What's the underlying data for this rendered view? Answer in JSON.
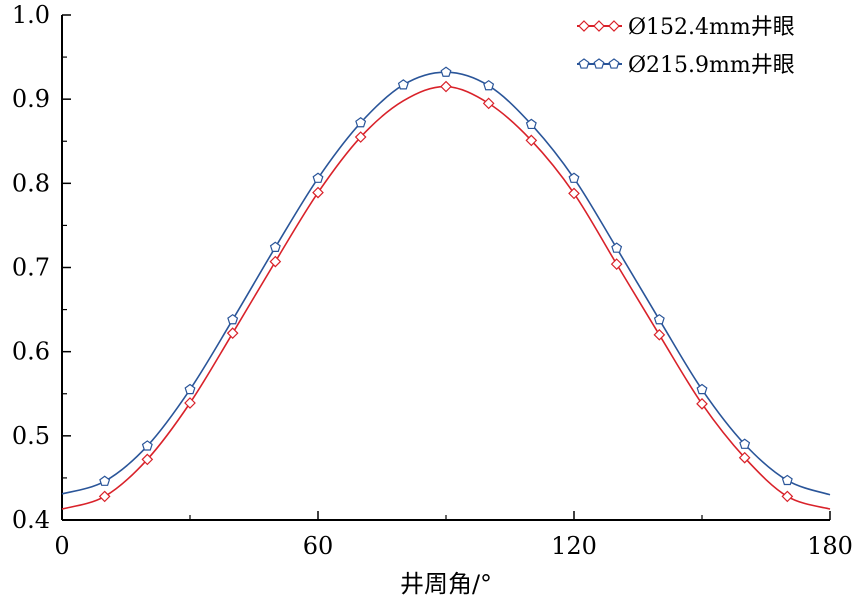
{
  "chart_data": {
    "type": "line",
    "xlabel": "井周角/°",
    "ylabel": "",
    "xlim": [
      0,
      180
    ],
    "ylim": [
      0.4,
      1.0
    ],
    "x_ticks": [
      0,
      60,
      120,
      180
    ],
    "x_tick_labels": [
      "0",
      "60",
      "120",
      "180"
    ],
    "y_ticks": [
      0.4,
      0.5,
      0.6,
      0.7,
      0.8,
      0.9,
      1.0
    ],
    "y_tick_labels": [
      "0.4",
      "0.5",
      "0.6",
      "0.7",
      "0.8",
      "0.9",
      "1.0"
    ],
    "grid": false,
    "legend_position": "top-right",
    "series": [
      {
        "name": "Ø152.4mm井眼",
        "color": "#d9222a",
        "marker": "diamond",
        "x": [
          0,
          10,
          20,
          30,
          40,
          50,
          60,
          70,
          80,
          90,
          100,
          110,
          120,
          130,
          140,
          150,
          160,
          170,
          180
        ],
        "y": [
          0.413,
          0.428,
          0.472,
          0.539,
          0.622,
          0.707,
          0.789,
          0.855,
          0.898,
          0.915,
          0.895,
          0.851,
          0.788,
          0.704,
          0.62,
          0.538,
          0.474,
          0.428,
          0.413
        ],
        "markers_x": [
          10,
          20,
          30,
          40,
          50,
          60,
          70,
          90,
          100,
          110,
          120,
          130,
          140,
          150,
          160,
          170
        ],
        "markers_y": [
          0.428,
          0.472,
          0.539,
          0.622,
          0.707,
          0.789,
          0.855,
          0.915,
          0.895,
          0.851,
          0.788,
          0.704,
          0.62,
          0.538,
          0.474,
          0.428
        ]
      },
      {
        "name": "Ø215.9mm井眼",
        "color": "#2a5599",
        "marker": "pentagon",
        "x": [
          0,
          10,
          20,
          30,
          40,
          50,
          60,
          70,
          80,
          90,
          100,
          110,
          120,
          130,
          140,
          150,
          160,
          170,
          180
        ],
        "y": [
          0.431,
          0.446,
          0.488,
          0.555,
          0.638,
          0.724,
          0.806,
          0.872,
          0.917,
          0.932,
          0.916,
          0.87,
          0.806,
          0.723,
          0.638,
          0.555,
          0.49,
          0.447,
          0.43
        ],
        "markers_x": [
          10,
          20,
          30,
          40,
          50,
          60,
          70,
          80,
          90,
          100,
          110,
          120,
          130,
          140,
          150,
          160,
          170
        ],
        "markers_y": [
          0.446,
          0.488,
          0.555,
          0.638,
          0.724,
          0.806,
          0.872,
          0.917,
          0.932,
          0.916,
          0.87,
          0.806,
          0.723,
          0.638,
          0.555,
          0.49,
          0.447
        ]
      }
    ]
  }
}
